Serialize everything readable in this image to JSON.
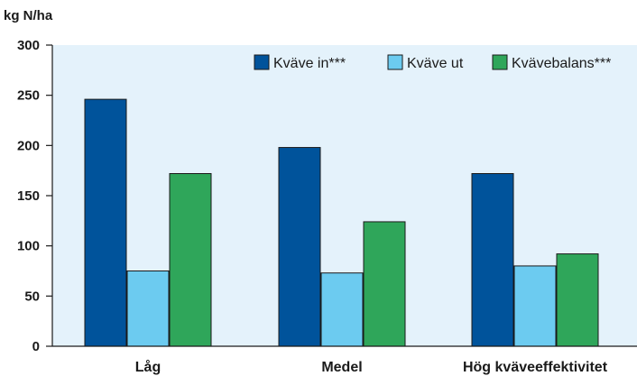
{
  "chart_data": {
    "type": "bar",
    "ylabel": "kg N/ha",
    "categories": [
      "Låg",
      "Medel",
      "Hög kväveeffektivitet"
    ],
    "series": [
      {
        "name": "Kväve in***",
        "color": "#00539b",
        "values": [
          246,
          198,
          172
        ]
      },
      {
        "name": "Kväve ut",
        "color": "#6ccbf0",
        "values": [
          75,
          73,
          80
        ]
      },
      {
        "name": "Kvävebalans***",
        "color": "#2fa65a",
        "values": [
          172,
          124,
          92
        ]
      }
    ],
    "ylim": [
      0,
      300
    ],
    "yticks": [
      0,
      50,
      100,
      150,
      200,
      250,
      300
    ],
    "grid": false,
    "legend_position": "top-right",
    "plot_background": "#e4f2fb"
  }
}
